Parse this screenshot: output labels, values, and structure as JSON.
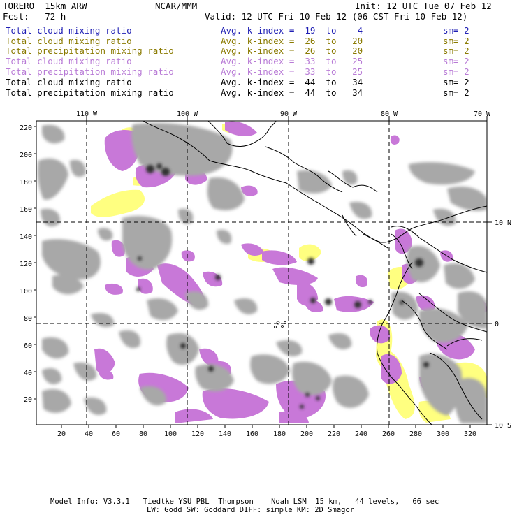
{
  "header": {
    "model": "TORERO  15km ARW",
    "center": "NCAR/MMM",
    "init": "Init: 12 UTC Tue 07 Feb 12",
    "fcst": "Fcst:   72 h",
    "valid": "Valid: 12 UTC Fri 10 Feb 12 (06 CST Fri 10 Feb 12)"
  },
  "legend": [
    {
      "field": "Total cloud mixing ratio",
      "kindex": "Avg. k-index =  19  to    4",
      "sm": "sm= 2",
      "color": "#1f1fb4"
    },
    {
      "field": "Total cloud mixing ratio",
      "kindex": "Avg. k-index =  26  to   20",
      "sm": "sm= 2",
      "color": "#8a7a00"
    },
    {
      "field": "Total precipitation mixing ratio",
      "kindex": "Avg. k-index =  26  to   20",
      "sm": "sm= 2",
      "color": "#8a7a00"
    },
    {
      "field": "Total cloud mixing ratio",
      "kindex": "Avg. k-index =  33  to   25",
      "sm": "sm= 2",
      "color": "#b87ad6"
    },
    {
      "field": "Total precipitation mixing ratio",
      "kindex": "Avg. k-index =  33  to   25",
      "sm": "sm= 2",
      "color": "#b87ad6"
    },
    {
      "field": "Total cloud mixing ratio",
      "kindex": "Avg. k-index =  44  to   34",
      "sm": "sm= 2",
      "color": "#000000"
    },
    {
      "field": "Total precipitation mixing ratio",
      "kindex": "Avg. k-index =  44  to   34",
      "sm": "sm= 2",
      "color": "#000000"
    }
  ],
  "map": {
    "lon_labels": [
      "110 W",
      "100 W",
      "90 W",
      "80 W",
      "70 W"
    ],
    "lat_labels": [
      "10 N",
      "0",
      "10 S"
    ],
    "x_ticks": [
      "20",
      "40",
      "60",
      "80",
      "100",
      "120",
      "140",
      "160",
      "180",
      "200",
      "220",
      "240",
      "260",
      "280",
      "300",
      "320"
    ],
    "y_ticks": [
      "20",
      "40",
      "60",
      "80",
      "100",
      "120",
      "140",
      "160",
      "180",
      "200",
      "220"
    ],
    "colors": {
      "yellow": "#ffff80",
      "purple": "#c878d8",
      "gray": "#a8a8a8",
      "dark": "#303030"
    }
  },
  "footer": {
    "line1": "Model Info: V3.3.1   Tiedtke YSU PBL  Thompson    Noah LSM  15 km,   44 levels,   66 sec",
    "line2": "LW: Godd SW: Goddard DIFF: simple KM: 2D Smagor"
  }
}
